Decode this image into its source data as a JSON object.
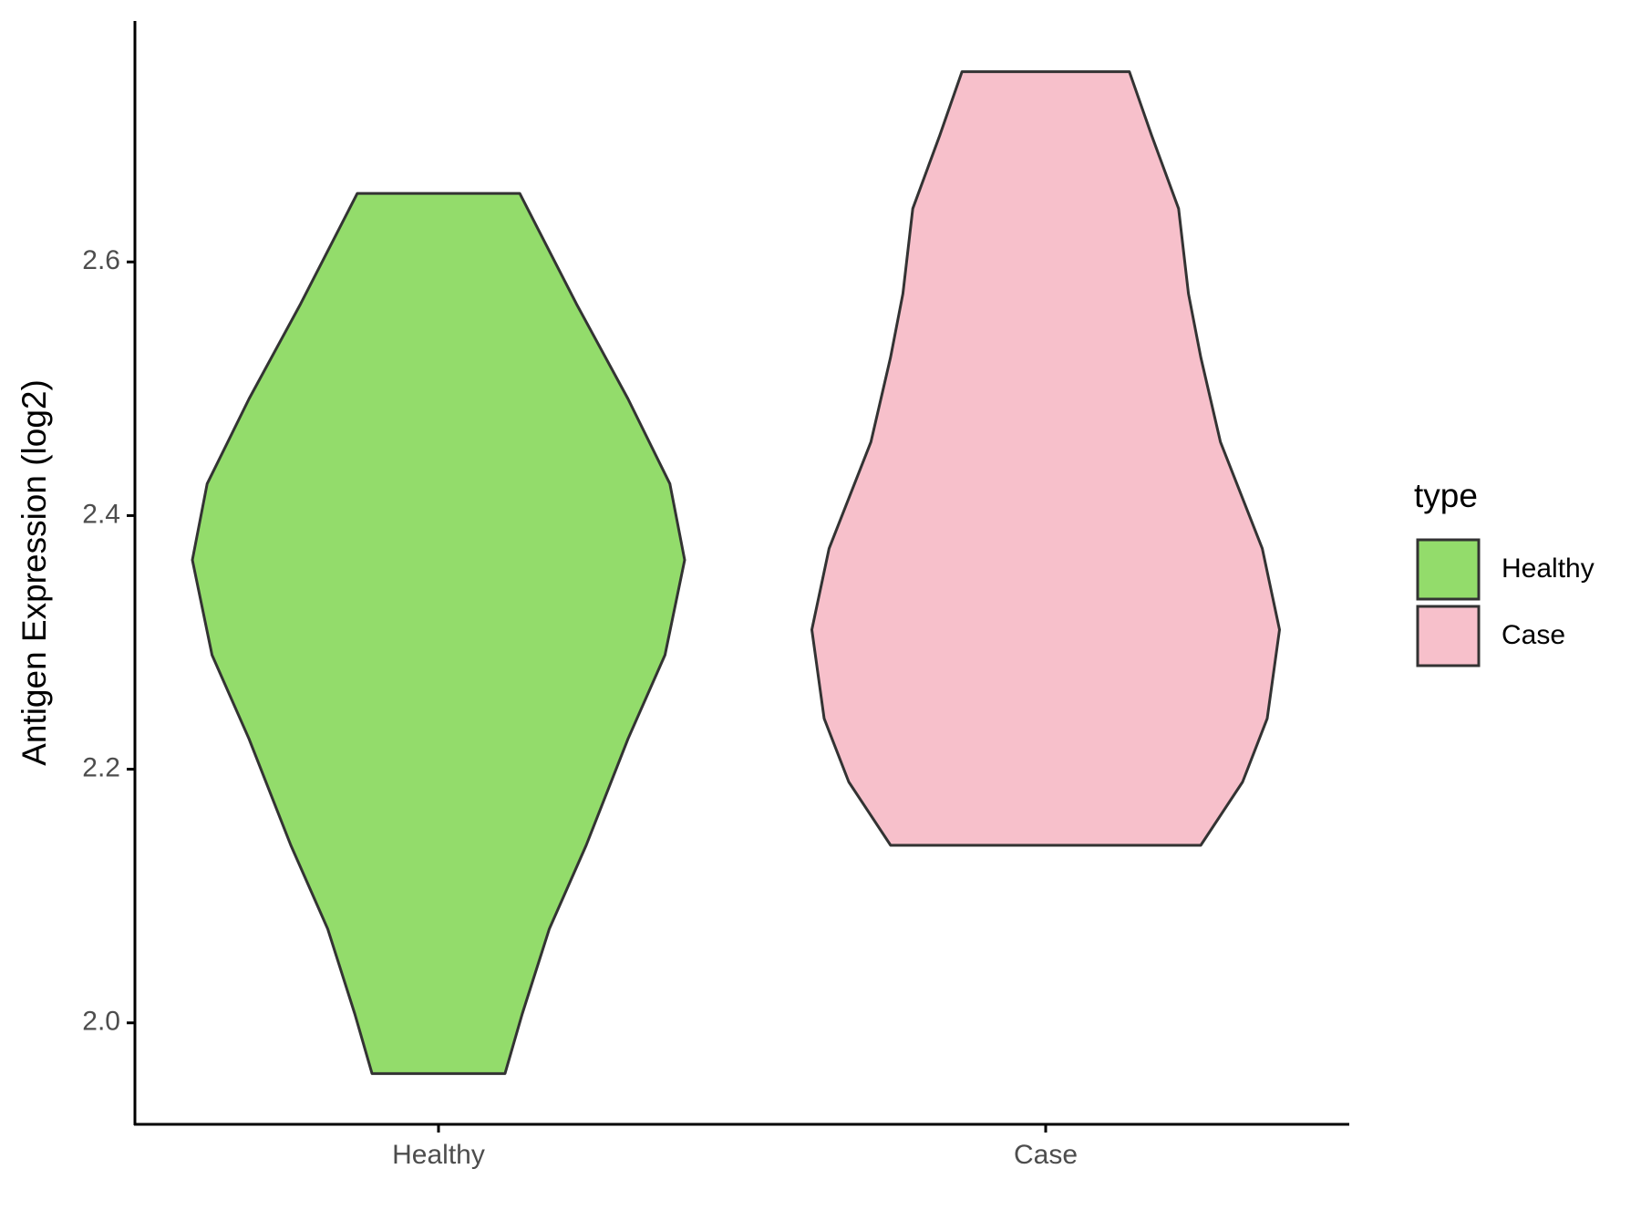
{
  "chart_data": {
    "type": "violin",
    "y_label": "Antigen Expression (log2)",
    "categories": [
      "Healthy",
      "Case"
    ],
    "legend_title": "type",
    "legend_position": "right",
    "ylim": [
      1.92,
      2.79
    ],
    "yticks": [
      {
        "value": 2.0,
        "label": "2.0"
      },
      {
        "value": 2.2,
        "label": "2.2"
      },
      {
        "value": 2.4,
        "label": "2.4"
      },
      {
        "value": 2.6,
        "label": "2.6"
      }
    ],
    "series": [
      {
        "name": "Healthy",
        "color": "#93dc6b",
        "y": [
          1.96,
          2.007,
          2.074,
          2.14,
          2.224,
          2.29,
          2.365,
          2.425,
          2.492,
          2.567,
          2.654
        ],
        "width": [
          0.27,
          0.34,
          0.45,
          0.6,
          0.77,
          0.92,
          1.0,
          0.94,
          0.77,
          0.56,
          0.33
        ]
      },
      {
        "name": "Case",
        "color": "#f7c0cb",
        "y": [
          2.14,
          2.19,
          2.24,
          2.31,
          2.374,
          2.458,
          2.525,
          2.575,
          2.642,
          2.7,
          2.75
        ],
        "width": [
          0.63,
          0.8,
          0.9,
          0.95,
          0.88,
          0.71,
          0.63,
          0.58,
          0.54,
          0.43,
          0.34
        ]
      }
    ]
  }
}
